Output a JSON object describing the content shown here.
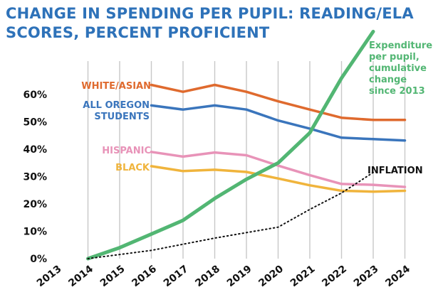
{
  "title": [
    "CHANGE IN SPENDING PER PUPIL: READING/ELA",
    "SCORES, PERCENT PROFICIENT"
  ],
  "colors": {
    "title": "#2e72b9",
    "white_asian": "#df6a2e",
    "all_oregon": "#3a75bc",
    "hispanic": "#e893b8",
    "black": "#f0b43c",
    "expenditure": "#52b673",
    "inflation": "#111111",
    "grid": "#c8c8c8"
  },
  "chart_data": {
    "type": "line",
    "x": [
      "2013",
      "2014",
      "2015",
      "2016",
      "2017",
      "2018",
      "2019",
      "2020",
      "2021",
      "2022",
      "2023",
      "2024"
    ],
    "yticks": [
      "0%",
      "10%",
      "20%",
      "30%",
      "40%",
      "50%",
      "60%"
    ],
    "ylim": [
      0,
      70
    ],
    "grid": "vertical",
    "series": [
      {
        "key": "white_asian",
        "name": "WHITE/ASIAN",
        "label_lines": [
          "WHITE/ASIAN"
        ],
        "style": "solid",
        "points": [
          [
            "2016",
            63.5
          ],
          [
            "2017",
            61
          ],
          [
            "2018",
            63.5
          ],
          [
            "2019",
            61
          ],
          [
            "2020",
            57.5
          ],
          [
            "2021",
            54.5
          ],
          [
            "2022",
            51.5
          ],
          [
            "2023",
            50.7
          ],
          [
            "2024",
            50.7
          ]
        ]
      },
      {
        "key": "all_oregon",
        "name": "ALL OREGON STUDENTS",
        "label_lines": [
          "ALL OREGON",
          "STUDENTS"
        ],
        "style": "solid",
        "points": [
          [
            "2016",
            56
          ],
          [
            "2017",
            54.5
          ],
          [
            "2018",
            56
          ],
          [
            "2019",
            54.5
          ],
          [
            "2020",
            50.5
          ],
          [
            "2021",
            47.5
          ],
          [
            "2022",
            44.2
          ],
          [
            "2023",
            43.7
          ],
          [
            "2024",
            43.2
          ]
        ]
      },
      {
        "key": "hispanic",
        "name": "HISPANIC",
        "label_lines": [
          "HISPANIC"
        ],
        "style": "solid",
        "points": [
          [
            "2016",
            39
          ],
          [
            "2017",
            37.3
          ],
          [
            "2018",
            38.8
          ],
          [
            "2019",
            37.8
          ],
          [
            "2020",
            34
          ],
          [
            "2021",
            30.5
          ],
          [
            "2022",
            27.3
          ],
          [
            "2023",
            27
          ],
          [
            "2024",
            26.2
          ]
        ]
      },
      {
        "key": "black",
        "name": "BLACK",
        "label_lines": [
          "BLACK"
        ],
        "style": "solid",
        "points": [
          [
            "2016",
            33.8
          ],
          [
            "2017",
            32
          ],
          [
            "2018",
            32.5
          ],
          [
            "2019",
            31.7
          ],
          [
            "2020",
            29.3
          ],
          [
            "2021",
            26.8
          ],
          [
            "2022",
            24.8
          ],
          [
            "2023",
            24.5
          ],
          [
            "2024",
            24.8
          ]
        ]
      },
      {
        "key": "expenditure",
        "name": "Expenditure per pupil, cumulative change since 2013",
        "label_lines": [
          "Expenditure",
          "per pupil,",
          "cumulative",
          "change",
          "since 2013"
        ],
        "style": "solid",
        "points": [
          [
            "2014",
            0
          ],
          [
            "2015",
            4
          ],
          [
            "2016",
            9
          ],
          [
            "2017",
            14
          ],
          [
            "2018",
            22
          ],
          [
            "2019",
            29
          ],
          [
            "2020",
            35
          ],
          [
            "2021",
            46
          ],
          [
            "2022",
            66
          ],
          [
            "2023",
            83
          ]
        ]
      },
      {
        "key": "inflation",
        "name": "INFLATION",
        "label_lines": [
          "INFLATION"
        ],
        "style": "dotted",
        "points": [
          [
            "2014",
            0
          ],
          [
            "2016",
            3
          ],
          [
            "2018",
            7.5
          ],
          [
            "2020",
            11.5
          ],
          [
            "2021",
            18
          ],
          [
            "2022",
            24
          ],
          [
            "2023",
            31.5
          ]
        ]
      }
    ]
  }
}
